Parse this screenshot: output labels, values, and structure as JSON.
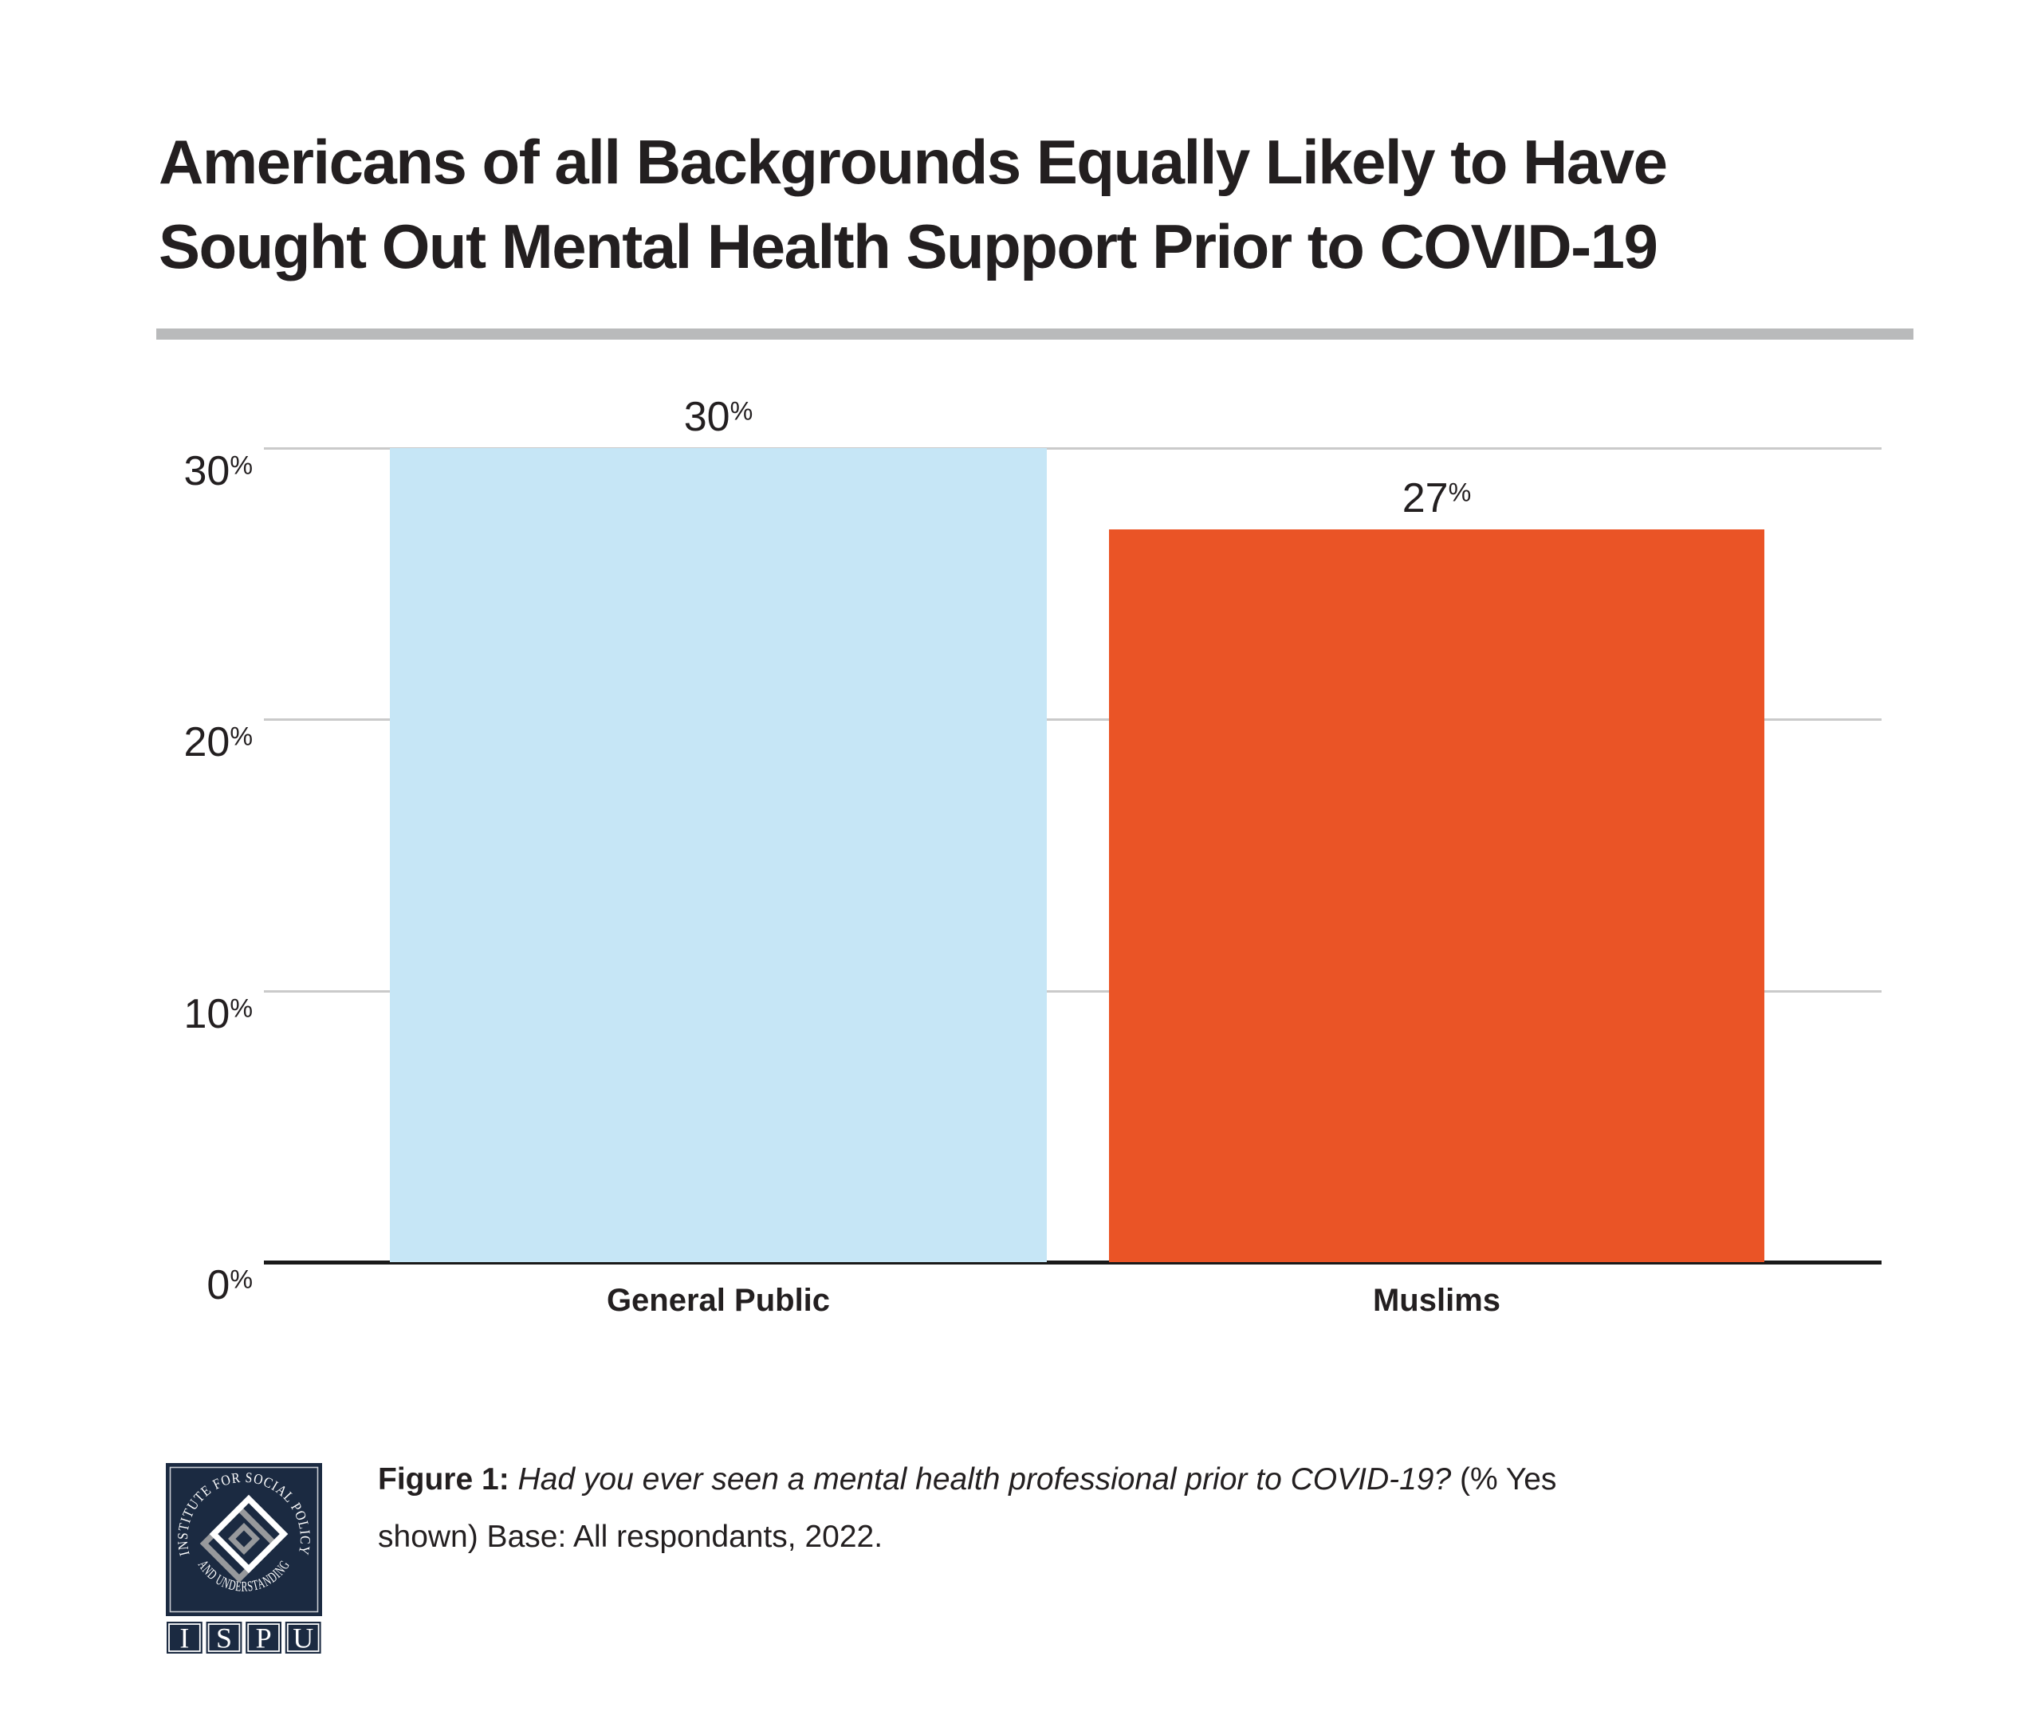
{
  "page_title": {
    "lines": [
      "Americans of all Backgrounds Equally Likely to Have",
      "Sought Out Mental Health Support Prior to COVID-19"
    ]
  },
  "chart_data": {
    "type": "bar",
    "title": "Americans of all Backgrounds Equally Likely to Have Sought Out Mental Health Support Prior to COVID-19",
    "categories": [
      "General Public",
      "Muslims"
    ],
    "values": [
      30,
      27
    ],
    "value_labels": [
      "30%",
      "27%"
    ],
    "bar_colors": [
      "#C6E6F6",
      "#EA5426"
    ],
    "xlabel": "",
    "ylabel": "",
    "ylim": [
      0,
      30
    ],
    "yticks": [
      0,
      10,
      20,
      30
    ],
    "ytick_labels": [
      "0%",
      "10%",
      "20%",
      "30%"
    ],
    "grid": "horizontal",
    "legend": "none"
  },
  "footer": {
    "caption": {
      "prefix": "Figure 1:",
      "question": "Had you ever seen a mental health professional prior to COVID-19?",
      "note": "(% Yes\nshown) Base: All respondants, 2022."
    },
    "logo": {
      "circle_text_top": "INSTITUTE FOR SOCIAL POLICY",
      "circle_text_bottom": "AND UNDERSTANDING",
      "letters": [
        "I",
        "S",
        "P",
        "U"
      ]
    }
  },
  "colors": {
    "ink": "#231F20",
    "divider": "#B9BABB",
    "gridline": "#CACACA",
    "axis_line": "#1A1A1A",
    "general_public_bar": "#C6E6F6",
    "muslims_bar": "#EA5426",
    "logo_navy": "#1B2A41",
    "logo_gray": "#97999C",
    "background": "#FFFFFF"
  }
}
